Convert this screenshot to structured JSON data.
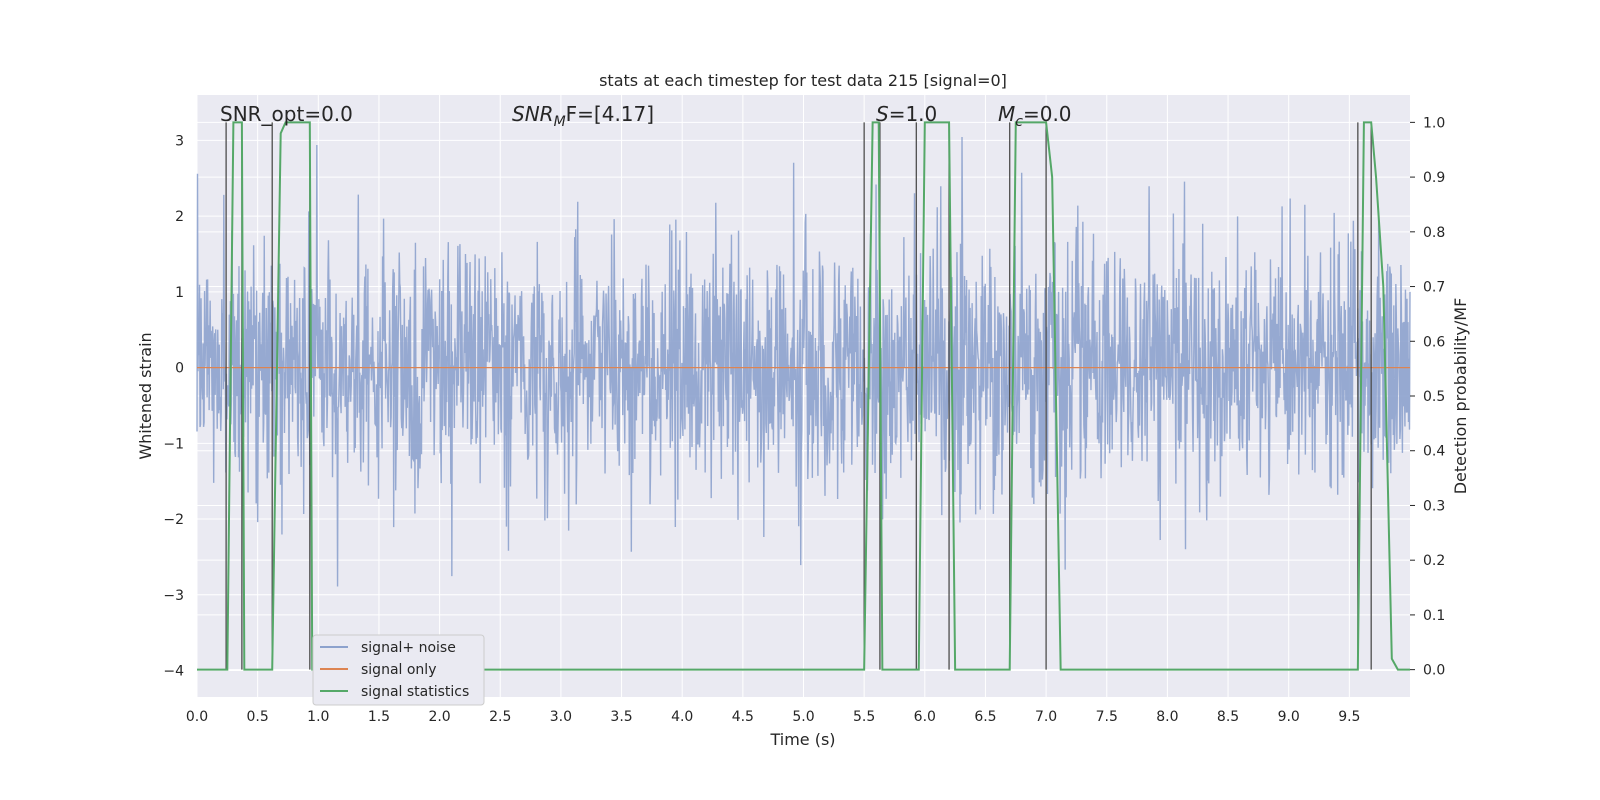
{
  "chart_data": {
    "type": "line",
    "title": "stats at each timestep for test data 215 [signal=0]",
    "xlabel": "Time (s)",
    "ylabel_left": "Whitened strain",
    "ylabel_right": "Detection probability/MF",
    "xlim": [
      0.0,
      10.0
    ],
    "ylim_left": [
      -4.35,
      3.6
    ],
    "ylim_right": [
      -0.05,
      1.05
    ],
    "x_ticks": [
      "0.0",
      "0.5",
      "1.0",
      "1.5",
      "2.0",
      "2.5",
      "3.0",
      "3.5",
      "4.0",
      "4.5",
      "5.0",
      "5.5",
      "6.0",
      "6.5",
      "7.0",
      "7.5",
      "8.0",
      "8.5",
      "9.0",
      "9.5"
    ],
    "y_left_ticks": [
      "3",
      "2",
      "1",
      "0",
      "−1",
      "−2",
      "−3",
      "−4"
    ],
    "y_right_ticks": [
      "1.0",
      "0.9",
      "0.8",
      "0.7",
      "0.6",
      "0.5",
      "0.4",
      "0.3",
      "0.2",
      "0.1",
      "0.0"
    ],
    "grid": true,
    "legend_placement": "lower-left",
    "annotations": [
      {
        "text": "SNR_opt=0.0",
        "x": 0.2
      },
      {
        "text": "SNR",
        "sub": "M",
        "after": "F=[4.17]",
        "italic_part": true,
        "x": 2.6
      },
      {
        "text": "S",
        "after": "=1.0",
        "italic_part": true,
        "x": 5.6
      },
      {
        "text": "M",
        "sub": "c",
        "after": "=0.0",
        "italic_part": true,
        "x": 6.6
      }
    ],
    "series": [
      {
        "name": "signal+ noise",
        "axis": "left",
        "color": "#8da2cd",
        "description_values": {
          "mean": 0.0,
          "std": 0.8,
          "approx_range": [
            -4.2,
            3.2
          ]
        }
      },
      {
        "name": "signal only",
        "axis": "left",
        "color": "#dd8452",
        "values_constant": 0.0
      },
      {
        "name": "signal statistics",
        "axis": "right",
        "color": "#55a868",
        "x": [
          0.0,
          0.05,
          0.25,
          0.3,
          0.37,
          0.39,
          0.62,
          0.69,
          0.73,
          0.93,
          0.95,
          5.5,
          5.57,
          5.62,
          5.65,
          5.95,
          6.0,
          6.2,
          6.25,
          6.3,
          6.7,
          6.75,
          7.0,
          7.05,
          7.12,
          9.57,
          9.62,
          9.68,
          9.72,
          9.78,
          9.85,
          9.9,
          10.0
        ],
        "y": [
          0.0,
          0.0,
          0.0,
          1.0,
          1.0,
          0.0,
          0.0,
          0.98,
          1.0,
          1.0,
          0.0,
          0.0,
          1.0,
          1.0,
          0.0,
          0.0,
          1.0,
          1.0,
          0.0,
          0.0,
          0.0,
          1.0,
          1.0,
          0.9,
          0.0,
          0.0,
          1.0,
          1.0,
          0.9,
          0.7,
          0.02,
          0.0,
          0.0
        ]
      }
    ],
    "vlines": [
      0.24,
      0.37,
      0.62,
      0.93,
      5.5,
      5.63,
      5.93,
      6.2,
      6.7,
      7.0,
      9.57,
      9.68
    ]
  },
  "legend": {
    "items": [
      "signal+ noise",
      "signal only",
      "signal statistics"
    ]
  },
  "colors": {
    "background": "#eaeaf2",
    "grid": "#ffffff",
    "noise": "#8da2cd",
    "signal": "#dd8452",
    "stats": "#55a868",
    "vline": "#4d4d4d"
  }
}
